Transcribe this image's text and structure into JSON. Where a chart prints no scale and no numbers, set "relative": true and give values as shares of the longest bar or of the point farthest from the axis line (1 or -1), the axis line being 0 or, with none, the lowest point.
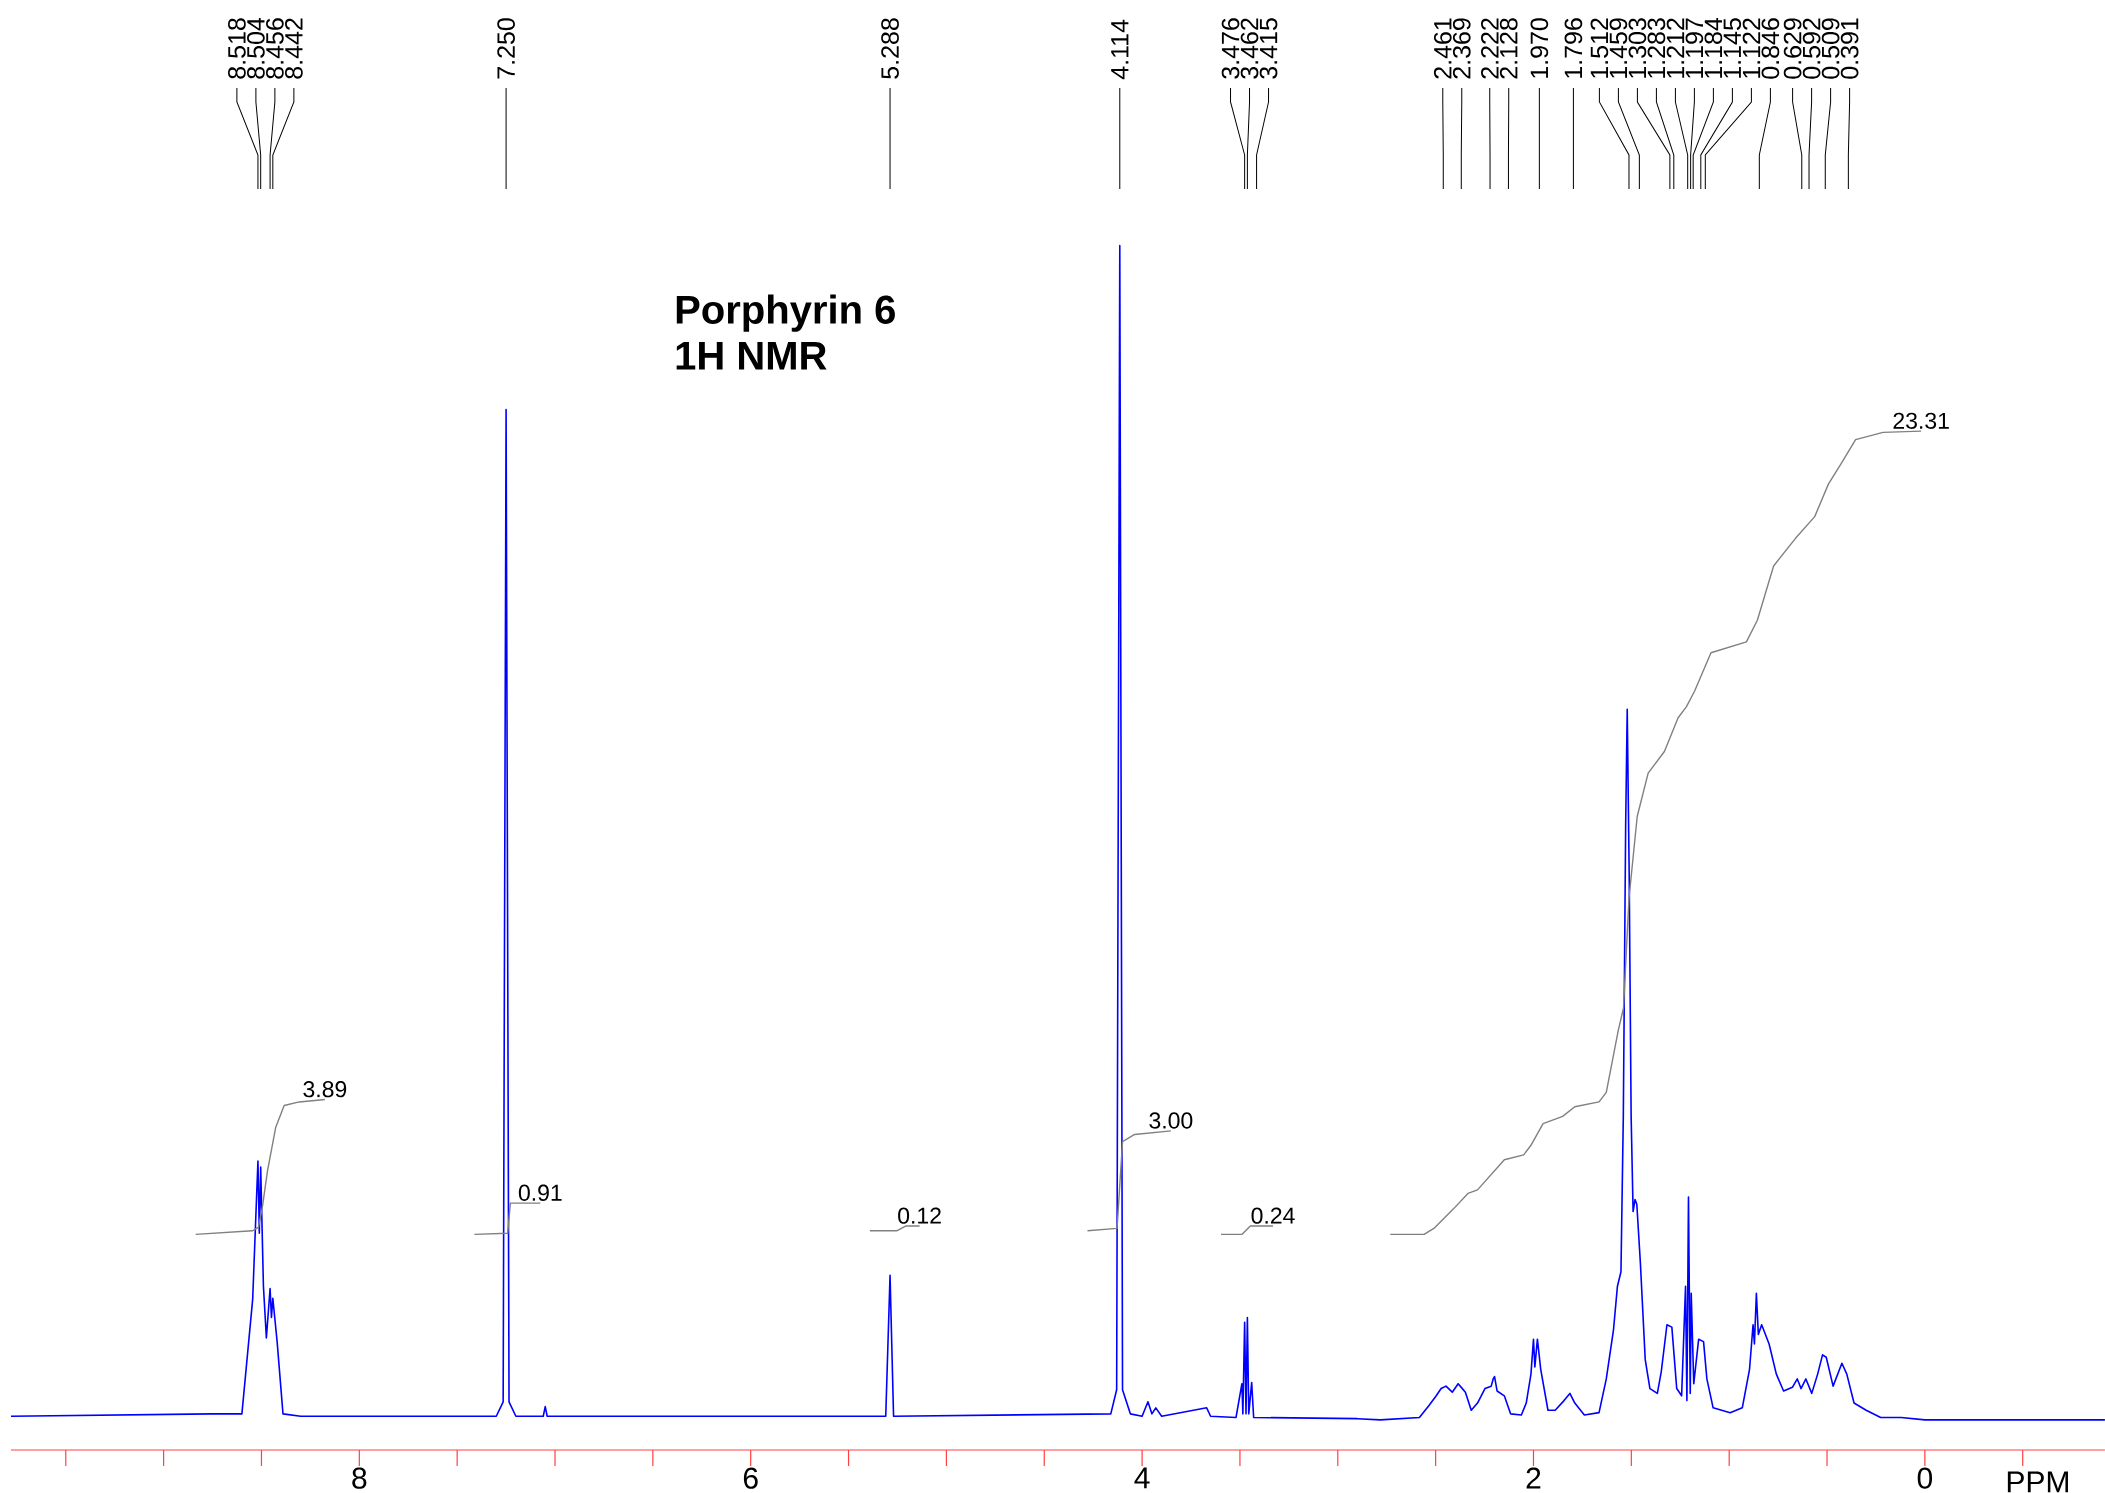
{
  "chart_data": {
    "type": "line",
    "relative": true,
    "title": "Porphyrin 6",
    "subtitle": "1H NMR",
    "xlabel": "PPM",
    "marker": "none",
    "xlim": [
      9.78,
      -0.92
    ],
    "xticks": [
      {
        "value": 9.5,
        "label": null
      },
      {
        "value": 9,
        "label": null
      },
      {
        "value": 8.5,
        "label": null
      },
      8,
      {
        "value": 7.5,
        "label": null
      },
      {
        "value": 7,
        "label": null
      },
      {
        "value": 6.5,
        "label": null
      },
      6,
      {
        "value": 5.5,
        "label": null
      },
      {
        "value": 5,
        "label": null
      },
      {
        "value": 4.5,
        "label": null
      },
      4,
      {
        "value": 3.5,
        "label": null
      },
      {
        "value": 3,
        "label": null
      },
      {
        "value": 2.5,
        "label": null
      },
      2,
      {
        "value": 1.5,
        "label": null
      },
      {
        "value": 1,
        "label": null
      },
      {
        "value": 0.5,
        "label": null
      },
      0,
      {
        "value": -0.5,
        "label": null
      }
    ],
    "series": [
      {
        "color": "#0000ff",
        "x": [
          9.78,
          8.75,
          8.6,
          8.545,
          8.518,
          8.511,
          8.504,
          8.49,
          8.475,
          8.456,
          8.449,
          8.442,
          8.42,
          8.39,
          8.3,
          7.3,
          7.265,
          7.25,
          7.235,
          7.2,
          7.06,
          7.05,
          7.04,
          5.31,
          5.288,
          5.27,
          4.16,
          4.13,
          4.114,
          4.1,
          4.06,
          4.0,
          3.97,
          3.95,
          3.93,
          3.9,
          3.67,
          3.65,
          3.52,
          3.49,
          3.485,
          3.476,
          3.469,
          3.462,
          3.455,
          3.44,
          3.43,
          2.9,
          2.782,
          2.583,
          2.534,
          2.497,
          2.472,
          2.447,
          2.415,
          2.385,
          2.369,
          2.348,
          2.318,
          2.286,
          2.248,
          2.216,
          2.206,
          2.199,
          2.186,
          2.149,
          2.117,
          2.062,
          2.037,
          2.013,
          2.0,
          1.993,
          1.98,
          1.963,
          1.926,
          1.889,
          1.844,
          1.814,
          1.789,
          1.74,
          1.665,
          1.628,
          1.591,
          1.571,
          1.553,
          1.541,
          1.529,
          1.521,
          1.511,
          1.501,
          1.491,
          1.481,
          1.472,
          1.454,
          1.429,
          1.405,
          1.367,
          1.347,
          1.318,
          1.293,
          1.268,
          1.243,
          1.223,
          1.216,
          1.208,
          1.199,
          1.194,
          1.181,
          1.156,
          1.131,
          1.114,
          1.082,
          0.995,
          0.933,
          0.896,
          0.878,
          0.871,
          0.861,
          0.851,
          0.834,
          0.796,
          0.759,
          0.722,
          0.677,
          0.652,
          0.633,
          0.608,
          0.578,
          0.548,
          0.523,
          0.504,
          0.469,
          0.424,
          0.399,
          0.362,
          0.3,
          0.226,
          0.121,
          0.0,
          -0.92
        ],
        "values": [
          0.028,
          0.03,
          0.03,
          0.125,
          0.24,
          0.18,
          0.235,
          0.136,
          0.093,
          0.134,
          0.11,
          0.126,
          0.09,
          0.03,
          0.028,
          0.028,
          0.04,
          0.864,
          0.04,
          0.028,
          0.028,
          0.036,
          0.028,
          0.028,
          0.145,
          0.028,
          0.03,
          0.05,
          1.0,
          0.05,
          0.03,
          0.028,
          0.04,
          0.03,
          0.035,
          0.028,
          0.035,
          0.028,
          0.027,
          0.055,
          0.03,
          0.106,
          0.03,
          0.11,
          0.03,
          0.056,
          0.027,
          0.026,
          0.025,
          0.027,
          0.037,
          0.045,
          0.051,
          0.053,
          0.048,
          0.055,
          0.052,
          0.048,
          0.033,
          0.039,
          0.051,
          0.053,
          0.059,
          0.061,
          0.049,
          0.045,
          0.03,
          0.029,
          0.039,
          0.063,
          0.092,
          0.069,
          0.092,
          0.067,
          0.033,
          0.033,
          0.041,
          0.047,
          0.039,
          0.029,
          0.031,
          0.059,
          0.1,
          0.136,
          0.148,
          0.277,
          0.519,
          0.615,
          0.478,
          0.277,
          0.198,
          0.208,
          0.204,
          0.156,
          0.075,
          0.051,
          0.047,
          0.065,
          0.104,
          0.102,
          0.051,
          0.045,
          0.136,
          0.041,
          0.21,
          0.047,
          0.13,
          0.055,
          0.092,
          0.09,
          0.059,
          0.035,
          0.031,
          0.035,
          0.067,
          0.104,
          0.088,
          0.13,
          0.096,
          0.104,
          0.088,
          0.063,
          0.049,
          0.052,
          0.059,
          0.051,
          0.059,
          0.047,
          0.063,
          0.079,
          0.077,
          0.053,
          0.072,
          0.063,
          0.039,
          0.033,
          0.027,
          0.027,
          0.025,
          0.025
        ]
      },
      {
        "color": "#808080",
        "x": [
          8.836,
          8.546,
          8.515,
          8.495,
          8.469,
          8.427,
          8.384,
          8.307,
          8.176
        ],
        "values": [
          0.179,
          0.182,
          0.185,
          0.202,
          0.232,
          0.268,
          0.286,
          0.289,
          0.291
        ]
      },
      {
        "color": "#808080",
        "x": [
          7.412,
          7.242,
          7.228,
          7.199,
          7.075
        ],
        "values": [
          0.179,
          0.18,
          0.205,
          0.205,
          0.205
        ]
      },
      {
        "color": "#808080",
        "x": [
          5.391,
          5.254,
          5.206,
          5.137
        ],
        "values": [
          0.182,
          0.182,
          0.186,
          0.186
        ]
      },
      {
        "color": "#808080",
        "x": [
          4.279,
          4.128,
          4.1,
          4.038,
          3.853
        ],
        "values": [
          0.182,
          0.184,
          0.256,
          0.262,
          0.265
        ]
      },
      {
        "color": "#808080",
        "x": [
          3.597,
          3.49,
          3.447,
          3.331
        ],
        "values": [
          0.179,
          0.179,
          0.186,
          0.186
        ]
      },
      {
        "color": "#808080",
        "x": [
          2.732,
          2.559,
          2.509,
          2.41,
          2.335,
          2.286,
          2.149,
          2.05,
          2.013,
          1.951,
          1.851,
          1.789,
          1.665,
          1.628,
          1.566,
          1.54,
          1.512,
          1.47,
          1.414,
          1.331,
          1.261,
          1.219,
          1.177,
          1.093,
          0.912,
          0.856,
          0.773,
          0.661,
          0.563,
          0.493,
          0.424,
          0.354,
          0.214,
          0.019
        ],
        "values": [
          0.179,
          0.179,
          0.184,
          0.2,
          0.213,
          0.216,
          0.241,
          0.245,
          0.253,
          0.271,
          0.277,
          0.285,
          0.289,
          0.297,
          0.349,
          0.367,
          0.458,
          0.526,
          0.562,
          0.58,
          0.608,
          0.617,
          0.63,
          0.662,
          0.671,
          0.689,
          0.734,
          0.757,
          0.775,
          0.802,
          0.82,
          0.839,
          0.845,
          0.846
        ]
      }
    ],
    "annotations": [
      {
        "text": "8.518",
        "x": 8.518
      },
      {
        "text": "8.504",
        "x": 8.504
      },
      {
        "text": "8.456",
        "x": 8.456
      },
      {
        "text": "8.442",
        "x": 8.442
      },
      {
        "text": "7.250",
        "x": 7.25
      },
      {
        "text": "5.288",
        "x": 5.288
      },
      {
        "text": "4.114",
        "x": 4.114
      },
      {
        "text": "3.476",
        "x": 3.476
      },
      {
        "text": "3.462",
        "x": 3.462
      },
      {
        "text": "3.415",
        "x": 3.415
      },
      {
        "text": "2.461",
        "x": 2.461
      },
      {
        "text": "2.369",
        "x": 2.369
      },
      {
        "text": "2.222",
        "x": 2.222
      },
      {
        "text": "2.128",
        "x": 2.128
      },
      {
        "text": "1.970",
        "x": 1.97
      },
      {
        "text": "1.796",
        "x": 1.796
      },
      {
        "text": "1.512",
        "x": 1.512
      },
      {
        "text": "1.459",
        "x": 1.459
      },
      {
        "text": "1.303",
        "x": 1.303
      },
      {
        "text": "1.283",
        "x": 1.283
      },
      {
        "text": "1.212",
        "x": 1.212
      },
      {
        "text": "1.197",
        "x": 1.197
      },
      {
        "text": "1.184",
        "x": 1.184
      },
      {
        "text": "1.145",
        "x": 1.145
      },
      {
        "text": "1.122",
        "x": 1.122
      },
      {
        "text": "0.846",
        "x": 0.846
      },
      {
        "text": "0.629",
        "x": 0.629
      },
      {
        "text": "0.592",
        "x": 0.592
      },
      {
        "text": "0.509",
        "x": 0.509
      },
      {
        "text": "0.391",
        "x": 0.391
      },
      {
        "text": "3.89",
        "x": 8.176,
        "y": 0.291
      },
      {
        "text": "0.91",
        "x": 7.075,
        "y": 0.205
      },
      {
        "text": "0.12",
        "x": 5.137,
        "y": 0.186
      },
      {
        "text": "3.00",
        "x": 3.853,
        "y": 0.265
      },
      {
        "text": "0.24",
        "x": 3.331,
        "y": 0.186
      },
      {
        "text": "23.31",
        "x": 0.019,
        "y": 0.846
      }
    ]
  }
}
